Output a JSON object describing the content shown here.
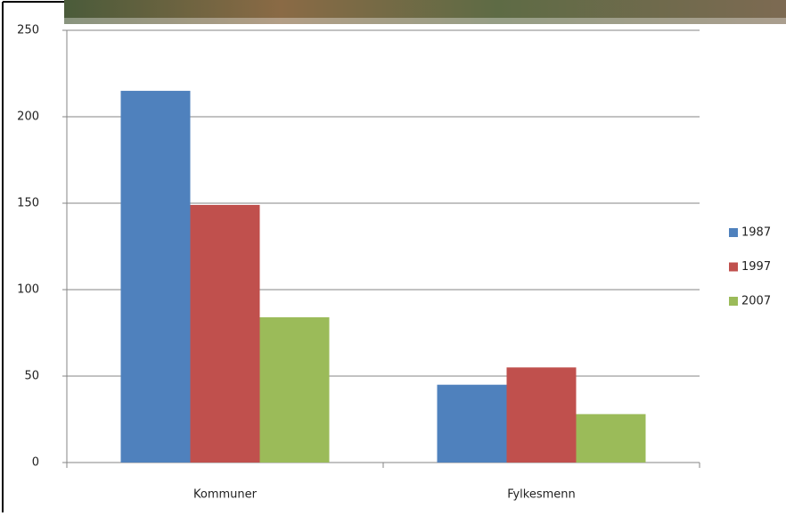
{
  "chart_data": {
    "type": "bar",
    "categories": [
      "Kommuner",
      "Fylkesmenn"
    ],
    "series": [
      {
        "name": "1987",
        "color": "#4f81bd",
        "values": [
          215,
          45
        ]
      },
      {
        "name": "1997",
        "color": "#c0504d",
        "values": [
          149,
          55
        ]
      },
      {
        "name": "2007",
        "color": "#9bbb59",
        "values": [
          84,
          28
        ]
      }
    ],
    "ylim": [
      0,
      250
    ],
    "yticks": [
      0,
      50,
      100,
      150,
      200,
      250
    ],
    "grid": true,
    "legend": "right"
  }
}
